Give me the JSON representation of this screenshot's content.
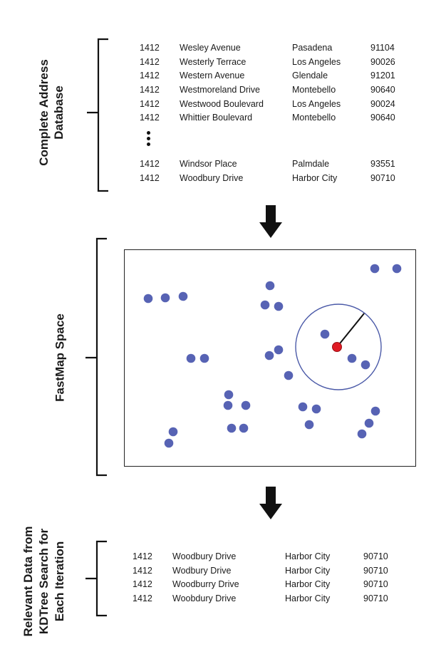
{
  "sections": {
    "database_label_lines": [
      "Complete Address",
      "Database"
    ],
    "fastmap_label": "FastMap Space",
    "relevant_label_lines": [
      "Relevant Data from",
      "KDTree Search for",
      "Each Iteration"
    ]
  },
  "database_rows": [
    [
      "1412",
      "Wesley Avenue",
      "Pasadena",
      "91104"
    ],
    [
      "1412",
      "Westerly Terrace",
      "Los Angeles",
      "90026"
    ],
    [
      "1412",
      "Western Avenue",
      "Glendale",
      "91201"
    ],
    [
      "1412",
      "Westmoreland Drive",
      "Montebello",
      "90640"
    ],
    [
      "1412",
      "Westwood Boulevard",
      "Los Angeles",
      "90024"
    ],
    [
      "1412",
      "Whittier Boulevard",
      "Montebello",
      "90640"
    ]
  ],
  "database_rows_tail": [
    [
      "1412",
      "Windsor Place",
      "Palmdale",
      "93551"
    ],
    [
      "1412",
      "Woodbury Drive",
      "Harbor City",
      "90710"
    ]
  ],
  "relevant_rows": [
    [
      "1412",
      "Woodbury Drive",
      "Harbor City",
      "90710"
    ],
    [
      "1412",
      "Wodbury Drive",
      "Harbor City",
      "90710"
    ],
    [
      "1412",
      "Woodburry Drive",
      "Harbor City",
      "90710"
    ],
    [
      "1412",
      "Woobdury Drive",
      "Harbor City",
      "90710"
    ]
  ],
  "colors": {
    "point": "#5763b4",
    "query_point": "#e01b24",
    "search_circle": "#4b5aa8"
  }
}
